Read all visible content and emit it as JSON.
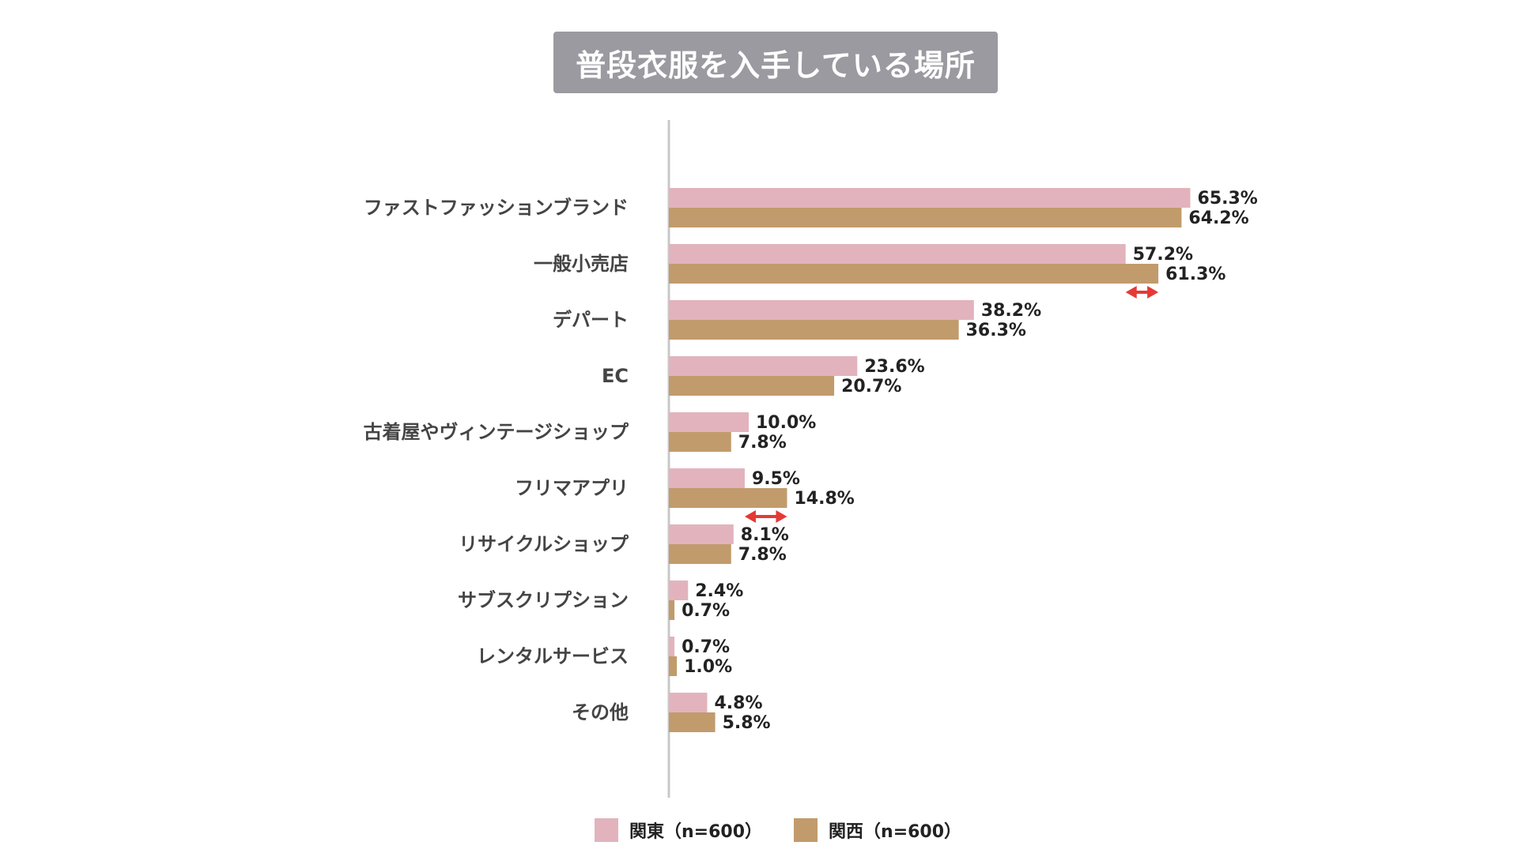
{
  "chart_data": {
    "type": "bar",
    "orientation": "horizontal",
    "title": "普段衣服を入手している場所",
    "categories": [
      "ファストファッションブランド",
      "一般小売店",
      "デパート",
      "EC",
      "古着屋やヴィンテージショップ",
      "フリマアプリ",
      "リサイクルショップ",
      "サブスクリプション",
      "レンタルサービス",
      "その他"
    ],
    "series": [
      {
        "name": "関東（n=600）",
        "color": "#e2b3bd",
        "values": [
          65.3,
          57.2,
          38.2,
          23.6,
          10.0,
          9.5,
          8.1,
          2.4,
          0.7,
          4.8
        ],
        "labels": [
          "65.3%",
          "57.2%",
          "38.2%",
          "23.6%",
          "10.0%",
          "9.5%",
          "8.1%",
          "2.4%",
          "0.7%",
          "4.8%"
        ]
      },
      {
        "name": "関西（n=600）",
        "color": "#c19b6c",
        "values": [
          64.2,
          61.3,
          36.3,
          20.7,
          7.8,
          14.8,
          7.8,
          0.7,
          1.0,
          5.8
        ],
        "labels": [
          "64.2%",
          "61.3%",
          "36.3%",
          "20.7%",
          "7.8%",
          "14.8%",
          "7.8%",
          "0.7%",
          "1.0%",
          "5.8%"
        ]
      }
    ],
    "highlight_categories": [
      "一般小売店",
      "フリマアプリ"
    ],
    "highlight_color": "#e53935",
    "xlim": [
      0,
      100
    ],
    "grid": false,
    "legend_position": "bottom-center"
  }
}
